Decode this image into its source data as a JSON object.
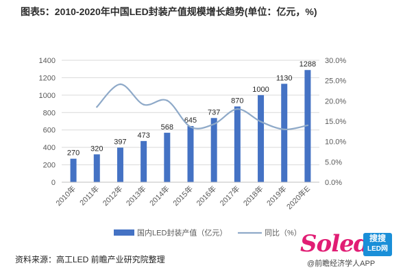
{
  "title": "图表5：2010-2020年中国LED封装产值规模增长趋势(单位：亿元，%)",
  "source": "资料来源：高工LED 前瞻产业研究院整理",
  "logo": {
    "word": "Soled",
    "box_line1": "搜搜",
    "box_line2": "LED网"
  },
  "app_credit": "@前瞻经济学人APP",
  "colors": {
    "bar": "#4472c4",
    "line": "#8ea9c8",
    "grid": "#d9d9d9",
    "text": "#595959"
  },
  "chart_data": {
    "type": "bar",
    "categories": [
      "2010年",
      "2011年",
      "2012年",
      "2013年",
      "2014年",
      "2015年",
      "2016年",
      "2017年",
      "2018年",
      "2019年",
      "2020年E"
    ],
    "series": [
      {
        "name": "国内LED封装产值（亿元）",
        "type": "bar",
        "axis": "left",
        "values": [
          270,
          320,
          397,
          473,
          568,
          645,
          737,
          870,
          1000,
          1130,
          1288
        ],
        "labels": [
          "270",
          "320",
          "397",
          "473",
          "568",
          "645",
          "737",
          "870",
          "1000",
          "1130",
          "1288"
        ]
      },
      {
        "name": "同比（%）",
        "type": "line",
        "axis": "right",
        "values": [
          null,
          18.5,
          24.1,
          19.1,
          20.1,
          13.6,
          14.3,
          18.0,
          14.9,
          13.0,
          14.0
        ]
      }
    ],
    "ylim": [
      0,
      1400
    ],
    "yticks": [
      "0",
      "200",
      "400",
      "600",
      "800",
      "1000",
      "1200",
      "1400"
    ],
    "y2lim": [
      0,
      30
    ],
    "y2ticks": [
      "0.0%",
      "5.0%",
      "10.0%",
      "15.0%",
      "20.0%",
      "25.0%",
      "30.0%"
    ],
    "grid": true,
    "legend_position": "bottom"
  }
}
